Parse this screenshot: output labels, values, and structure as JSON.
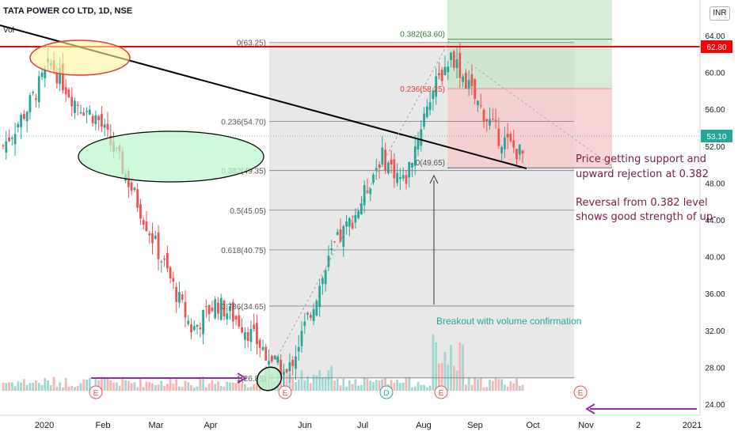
{
  "header": {
    "symbol": "TATA POWER CO LTD, 1D, NSE",
    "volume_label": "Vol",
    "currency": "INR"
  },
  "price_axis": {
    "ticks": [
      "64.00",
      "60.00",
      "56.00",
      "52.00",
      "48.00",
      "44.00",
      "40.00",
      "36.00",
      "32.00",
      "28.00",
      "24.00"
    ],
    "last_price": "53.10",
    "resistance": "62.80"
  },
  "time_axis": {
    "labels": [
      "2020",
      "Feb",
      "Mar",
      "Apr",
      "Jun",
      "Jul",
      "Aug",
      "Sep",
      "Oct",
      "Nov",
      "2",
      "2021"
    ]
  },
  "fibonacci": [
    {
      "label": "0(63.25)",
      "level": 63.25
    },
    {
      "label": "0.236(54.70)",
      "level": 54.7
    },
    {
      "label": "0.382(49.35)",
      "level": 49.35
    },
    {
      "label": "0.5(45.05)",
      "level": 45.05
    },
    {
      "label": "0.618(40.75)",
      "level": 40.75
    },
    {
      "label": "0.786(34.65)",
      "level": 34.65
    },
    {
      "label": "1(26.85)",
      "level": 26.85
    }
  ],
  "position": {
    "target_label": "0.382(63.60)",
    "stop_label": "0.236(58.25)",
    "entry_label": "0(49.65)"
  },
  "annotations": {
    "support_line1": "Price getting support and",
    "support_line2": "upward rejection at 0.382",
    "reversal_line1": "Reversal from 0.382 level",
    "reversal_line2": "shows good strength of up-",
    "breakout": "Breakout with volume confirmation"
  },
  "event_markers": [
    "E",
    "E",
    "D",
    "E",
    "E"
  ],
  "colors": {
    "up": "#26a69a",
    "down": "#ef5350",
    "resistance_line": "#ff0000",
    "trendline": "#000000",
    "arrow": "#9c27b0",
    "annotation_text": "#7b1c4e"
  },
  "chart_data": {
    "type": "candlestick",
    "title": "TATA POWER CO LTD, 1D, NSE",
    "y_unit": "INR",
    "ylim": [
      23.5,
      66
    ],
    "grid": false,
    "horizontal_levels": {
      "resistance": 62.8,
      "last": 53.1
    },
    "series": [
      {
        "name": "close_approx",
        "x": [
          "2020-01-01",
          "2020-01-15",
          "2020-01-25",
          "2020-02-05",
          "2020-02-15",
          "2020-02-25",
          "2020-03-05",
          "2020-03-15",
          "2020-03-25",
          "2020-04-05",
          "2020-04-20",
          "2020-05-05",
          "2020-05-20",
          "2020-06-01",
          "2020-06-15",
          "2020-07-01",
          "2020-07-15",
          "2020-08-01",
          "2020-08-15",
          "2020-08-25",
          "2020-09-05",
          "2020-09-15",
          "2020-09-25"
        ],
        "values": [
          52,
          56,
          61,
          57,
          55,
          50,
          44,
          38,
          32,
          35,
          33,
          30,
          27,
          34,
          41,
          45,
          51,
          48,
          57,
          62,
          57,
          53,
          51
        ]
      }
    ]
  }
}
